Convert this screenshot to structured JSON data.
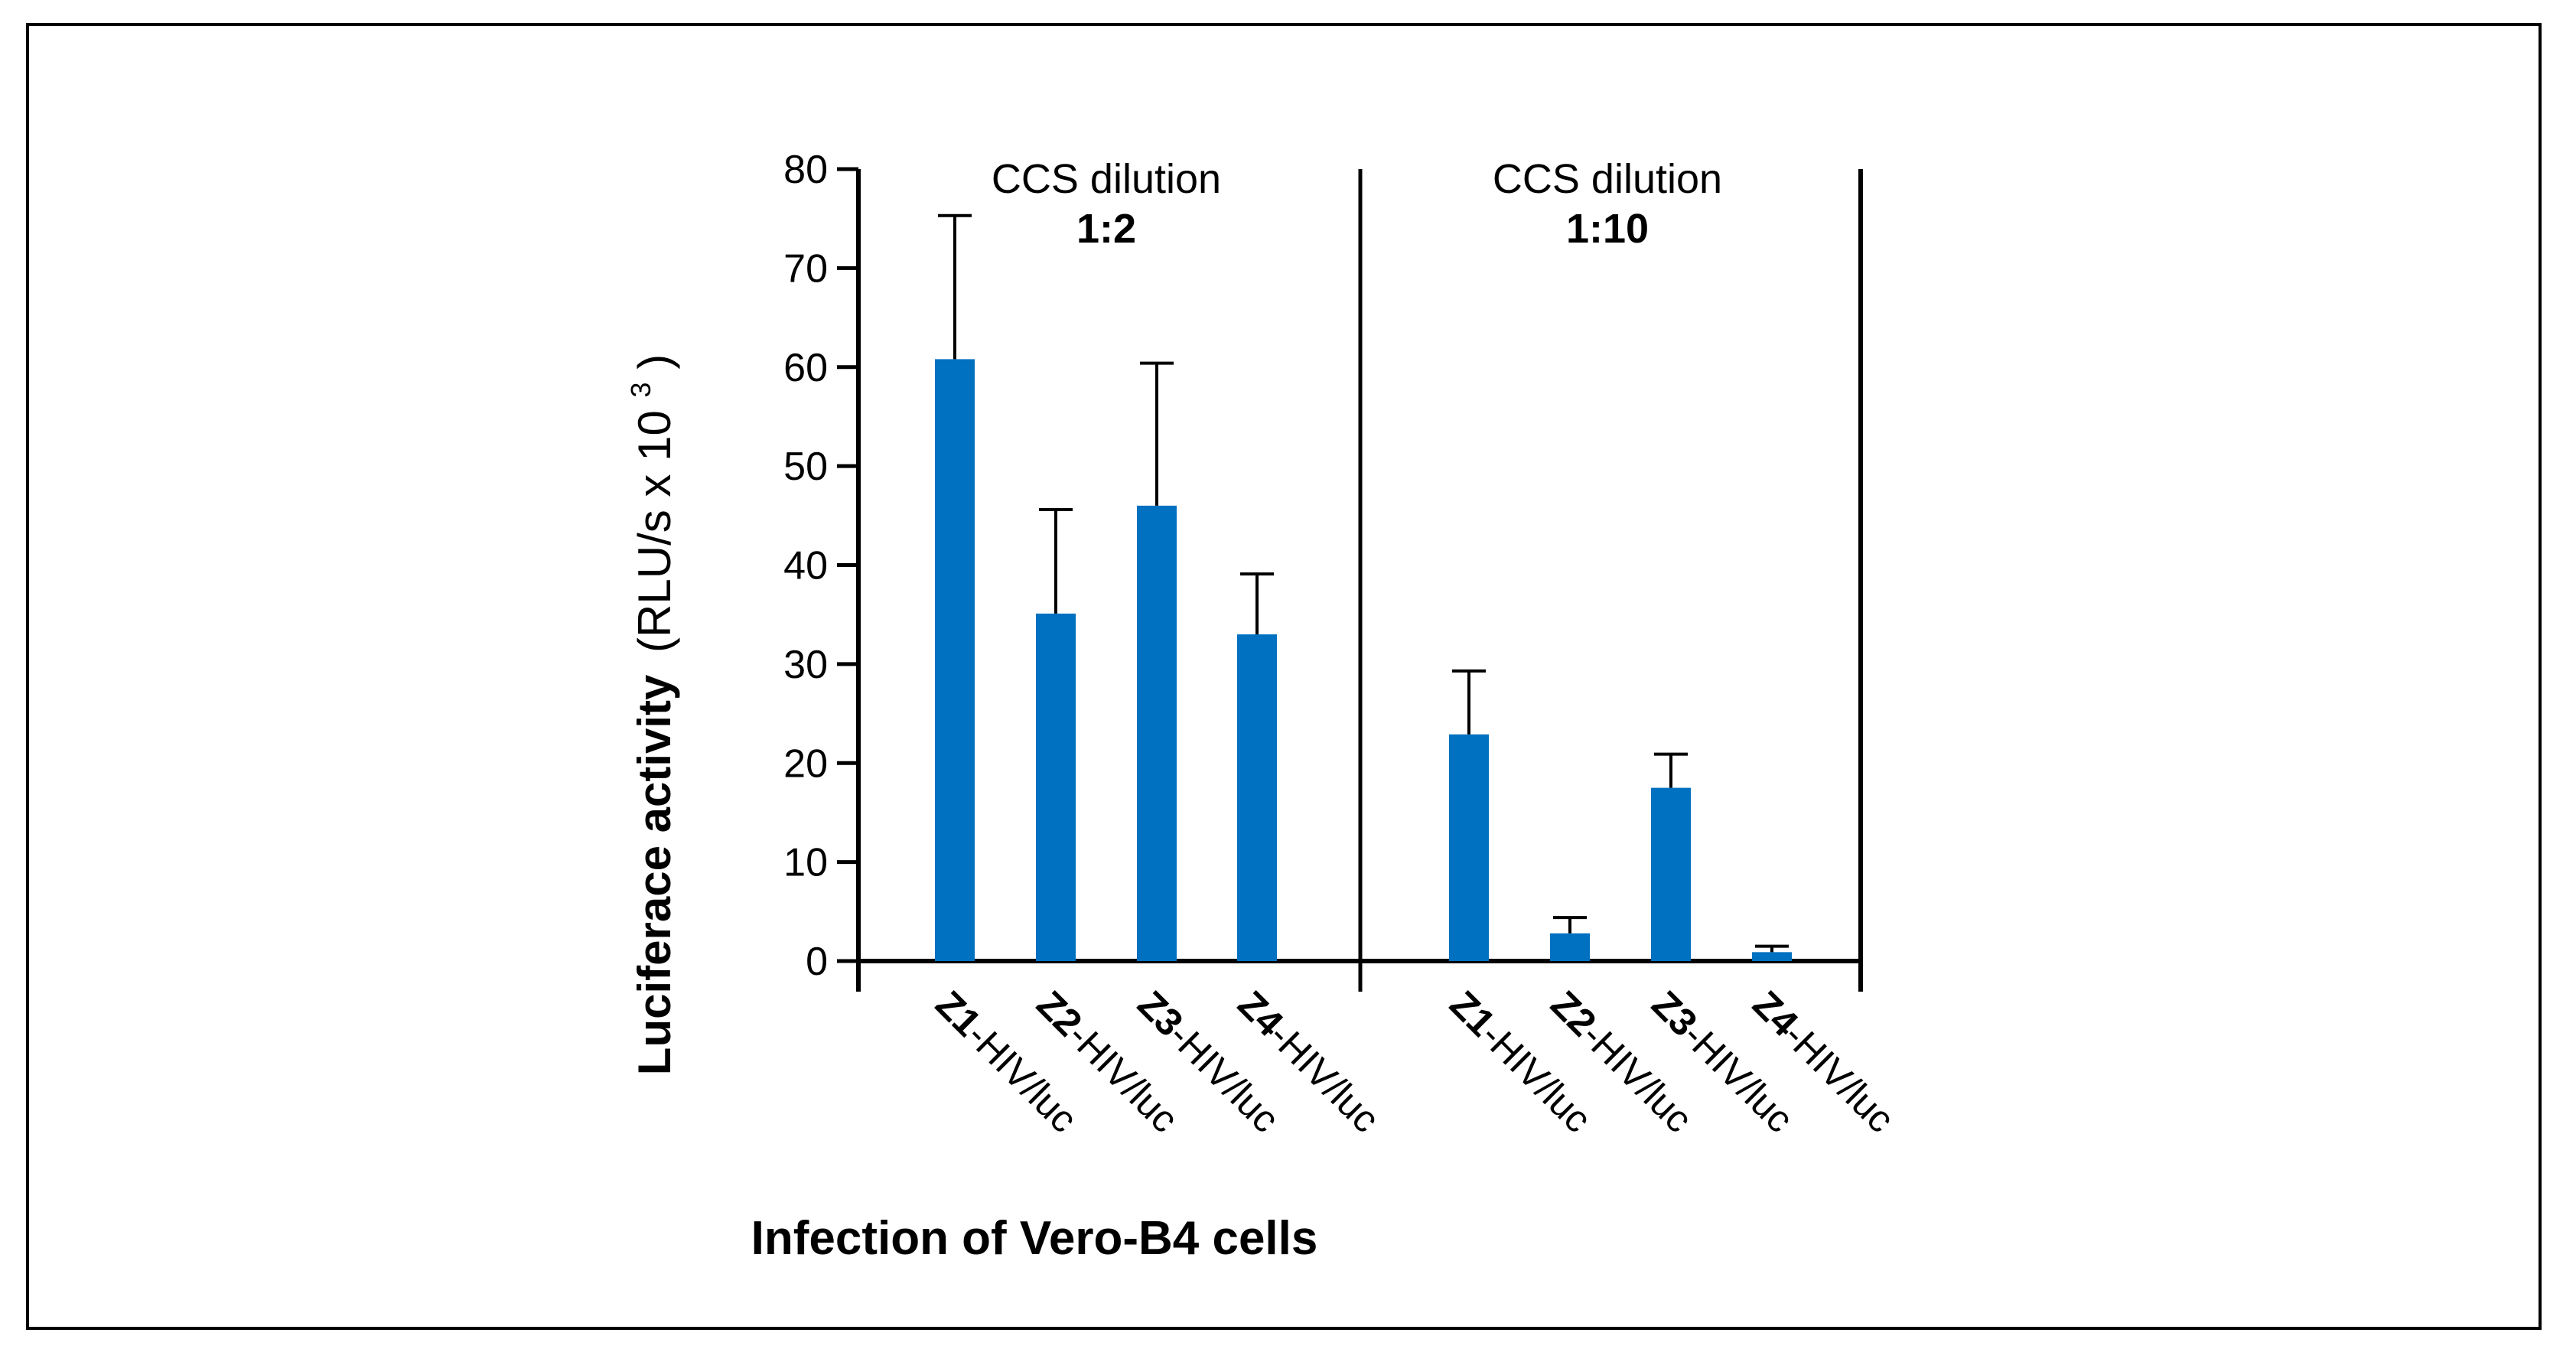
{
  "chart_data": {
    "type": "bar",
    "ylabel_bold": "Luciferace activity",
    "ylabel_unit": "(RLU/s x 10",
    "ylabel_exp": "3",
    "ylabel_close": ")",
    "xlabel": "Infection of Vero-B4 cells",
    "ylim": [
      0,
      80
    ],
    "yticks": [
      0,
      10,
      20,
      30,
      40,
      50,
      60,
      70,
      80
    ],
    "bar_color": "#0070C0",
    "groups": [
      {
        "title": "CCS dilution",
        "dilution": "1:2",
        "bars": [
          {
            "label_bold": "Z1",
            "label_rest": "-HIV/luc",
            "value": 60.8,
            "error": 14.5
          },
          {
            "label_bold": "Z2",
            "label_rest": "-HIV/luc",
            "value": 35.1,
            "error": 10.5
          },
          {
            "label_bold": "Z3",
            "label_rest": "-HIV/luc",
            "value": 46.0,
            "error": 14.4
          },
          {
            "label_bold": "Z4",
            "label_rest": "-HIV/luc",
            "value": 33.0,
            "error": 6.1
          }
        ]
      },
      {
        "title": "CCS dilution",
        "dilution": "1:10",
        "bars": [
          {
            "label_bold": "Z1",
            "label_rest": "-HIV/luc",
            "value": 22.9,
            "error": 6.4
          },
          {
            "label_bold": "Z2",
            "label_rest": "-HIV/luc",
            "value": 2.8,
            "error": 1.6
          },
          {
            "label_bold": "Z3",
            "label_rest": "-HIV/luc",
            "value": 17.5,
            "error": 3.4
          },
          {
            "label_bold": "Z4",
            "label_rest": "-HIV/luc",
            "value": 0.9,
            "error": 0.6
          }
        ]
      }
    ]
  }
}
